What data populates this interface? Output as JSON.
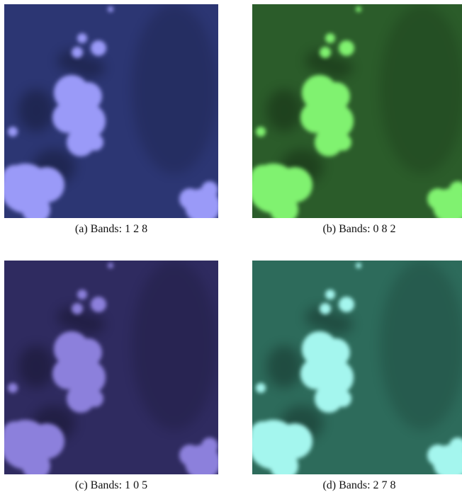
{
  "figures": [
    {
      "caption": "(a) Bands: 1 2 8"
    },
    {
      "caption": "(b) Bands: 0 8 2"
    },
    {
      "caption": "(c) Bands: 1 0 5"
    },
    {
      "caption": "(d) Bands: 2 7 8"
    }
  ]
}
